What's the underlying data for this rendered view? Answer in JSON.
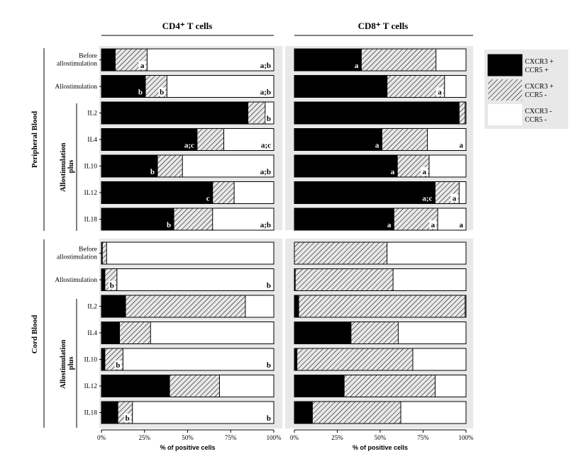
{
  "chart_data": {
    "type": "bar",
    "stacked": true,
    "orientation": "horizontal",
    "panels": [
      {
        "title": "CD4⁺ T cells",
        "xlabel": "% of positive cells"
      },
      {
        "title": "CD8⁺ T cells",
        "xlabel": "% of positive cells"
      }
    ],
    "xlim": [
      0,
      100
    ],
    "x_ticks": [
      "0%",
      "25%",
      "50%",
      "75%",
      "100%"
    ],
    "groups": [
      {
        "label": "Peripheral Blood",
        "subgroup_label": "Allostimulation plus"
      },
      {
        "label": "Cord Blood",
        "subgroup_label": "Allostimulation plus"
      }
    ],
    "categories": [
      "Before allostimulation",
      "Allostimulation",
      "IL2",
      "IL4",
      "IL10",
      "IL12",
      "IL18"
    ],
    "legend": [
      {
        "label": "CXCR3 + CCR5 +",
        "color": "#000000",
        "pattern": "solid"
      },
      {
        "label": "CXCR3 + CCR5 -",
        "color": "#ffffff",
        "pattern": "hatched"
      },
      {
        "label": "CXCR3 - CCR5 -",
        "color": "#ffffff",
        "pattern": "none"
      }
    ],
    "series_values": {
      "PB_CD4": {
        "double_positive": [
          8,
          25.5,
          85,
          55.5,
          32.5,
          64.5,
          42
        ],
        "cxcr3_only": [
          18.5,
          12.5,
          10,
          15.5,
          14.5,
          12.5,
          22.5
        ],
        "double_negative": [
          73.5,
          62,
          5,
          29,
          53,
          23,
          35.5
        ]
      },
      "PB_CD8": {
        "double_positive": [
          39,
          54,
          96,
          51,
          60,
          82,
          58
        ],
        "cxcr3_only": [
          43.5,
          33.5,
          3.5,
          26.5,
          18.5,
          14,
          25.5
        ],
        "double_negative": [
          17.5,
          12.5,
          0.5,
          22.5,
          21.5,
          4,
          16.5
        ]
      },
      "CB_CD4": {
        "double_positive": [
          0.5,
          2,
          14,
          10.5,
          2,
          39.5,
          9.5
        ],
        "cxcr3_only": [
          2.5,
          7,
          69.5,
          18,
          10.5,
          29,
          8.5
        ],
        "double_negative": [
          97,
          91,
          16.5,
          71.5,
          87.5,
          31.5,
          82
        ]
      },
      "CB_CD8": {
        "double_positive": [
          0,
          0.5,
          2.5,
          33,
          1.5,
          29,
          10.5
        ],
        "cxcr3_only": [
          54,
          57,
          97,
          27.5,
          67.5,
          53,
          51.5
        ],
        "double_negative": [
          46,
          42.5,
          0.5,
          39.5,
          31,
          18,
          38
        ]
      }
    },
    "annotations": [
      {
        "panel": "PB_CD4",
        "category": "Before allostimulation",
        "segment": "cxcr3_only",
        "text": "a"
      },
      {
        "panel": "PB_CD4",
        "category": "Before allostimulation",
        "segment": "double_negative",
        "text": "a;b"
      },
      {
        "panel": "PB_CD4",
        "category": "Allostimulation",
        "segment": "double_positive",
        "text": "b"
      },
      {
        "panel": "PB_CD4",
        "category": "Allostimulation",
        "segment": "cxcr3_only",
        "text": "b"
      },
      {
        "panel": "PB_CD4",
        "category": "Allostimulation",
        "segment": "double_negative",
        "text": "a;b"
      },
      {
        "panel": "PB_CD4",
        "category": "IL2",
        "segment": "double_negative",
        "text": "b"
      },
      {
        "panel": "PB_CD4",
        "category": "IL4",
        "segment": "double_positive",
        "text": "a;c"
      },
      {
        "panel": "PB_CD4",
        "category": "IL4",
        "segment": "double_negative",
        "text": "a;c"
      },
      {
        "panel": "PB_CD4",
        "category": "IL10",
        "segment": "double_positive",
        "text": "b"
      },
      {
        "panel": "PB_CD4",
        "category": "IL10",
        "segment": "double_negative",
        "text": "a;b"
      },
      {
        "panel": "PB_CD4",
        "category": "IL12",
        "segment": "double_positive",
        "text": "c"
      },
      {
        "panel": "PB_CD4",
        "category": "IL18",
        "segment": "double_positive",
        "text": "b"
      },
      {
        "panel": "PB_CD4",
        "category": "IL18",
        "segment": "double_negative",
        "text": "a;b"
      },
      {
        "panel": "PB_CD8",
        "category": "Before allostimulation",
        "segment": "double_positive",
        "text": "a"
      },
      {
        "panel": "PB_CD8",
        "category": "Allostimulation",
        "segment": "cxcr3_only",
        "text": "a"
      },
      {
        "panel": "PB_CD8",
        "category": "IL4",
        "segment": "double_positive",
        "text": "a"
      },
      {
        "panel": "PB_CD8",
        "category": "IL4",
        "segment": "double_negative",
        "text": "a"
      },
      {
        "panel": "PB_CD8",
        "category": "IL10",
        "segment": "double_positive",
        "text": "a"
      },
      {
        "panel": "PB_CD8",
        "category": "IL10",
        "segment": "cxcr3_only",
        "text": "a"
      },
      {
        "panel": "PB_CD8",
        "category": "IL12",
        "segment": "double_positive",
        "text": "a;c"
      },
      {
        "panel": "PB_CD8",
        "category": "IL12",
        "segment": "cxcr3_only",
        "text": "a"
      },
      {
        "panel": "PB_CD8",
        "category": "IL18",
        "segment": "double_positive",
        "text": "a"
      },
      {
        "panel": "PB_CD8",
        "category": "IL18",
        "segment": "cxcr3_only",
        "text": "a"
      },
      {
        "panel": "PB_CD8",
        "category": "IL18",
        "segment": "double_negative",
        "text": "a"
      },
      {
        "panel": "CB_CD4",
        "category": "Allostimulation",
        "segment": "cxcr3_only",
        "text": "b"
      },
      {
        "panel": "CB_CD4",
        "category": "Allostimulation",
        "segment": "double_negative",
        "text": "b"
      },
      {
        "panel": "CB_CD4",
        "category": "IL10",
        "segment": "cxcr3_only",
        "text": "b"
      },
      {
        "panel": "CB_CD4",
        "category": "IL10",
        "segment": "double_negative",
        "text": "b"
      },
      {
        "panel": "CB_CD4",
        "category": "IL18",
        "segment": "cxcr3_only",
        "text": "b"
      },
      {
        "panel": "CB_CD4",
        "category": "IL18",
        "segment": "double_negative",
        "text": "b"
      }
    ]
  }
}
